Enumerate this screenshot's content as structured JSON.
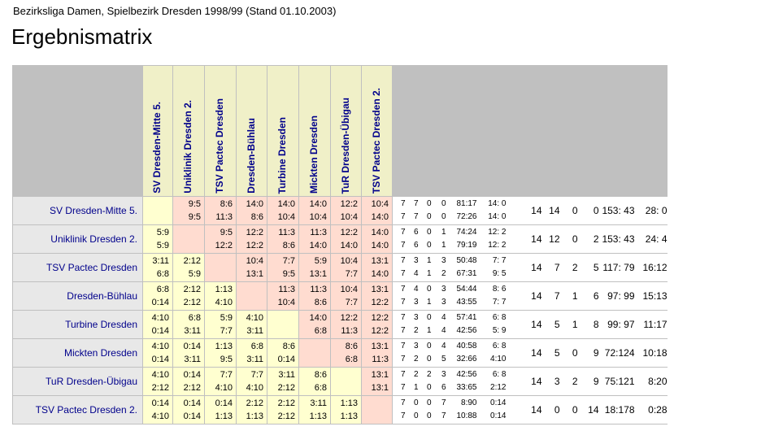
{
  "subtitle": "Bezirksliga Damen, Spielbezirk Dresden 1998/99 (Stand 01.10.2003)",
  "title": "Ergebnismatrix",
  "teams": [
    "SV Dresden-Mitte 5.",
    "Uniklinik Dresden 2.",
    "TSV Pactec Dresden",
    "Dresden-Bühlau",
    "Turbine Dresden",
    "Mickten Dresden",
    "TuR Dresden-Übigau",
    "TSV Pactec Dresden 2."
  ],
  "rows": [
    {
      "name": "SV Dresden-Mitte 5.",
      "cells": [
        [
          "",
          ""
        ],
        [
          "9:5",
          "9:5"
        ],
        [
          "8:6",
          "11:3"
        ],
        [
          "14:0",
          "8:6"
        ],
        [
          "14:0",
          "10:4"
        ],
        [
          "14:0",
          "10:4"
        ],
        [
          "12:2",
          "10:4"
        ],
        [
          "10:4",
          "14:0"
        ]
      ],
      "s1": [
        "7",
        "7",
        "0",
        "0",
        "81:17",
        "14: 0"
      ],
      "s2": [
        "7",
        "7",
        "0",
        "0",
        "72:26",
        "14: 0"
      ],
      "tot": [
        "14",
        "14",
        "0",
        "0",
        "153: 43",
        "28: 0"
      ]
    },
    {
      "name": "Uniklinik Dresden 2.",
      "cells": [
        [
          "5:9",
          "5:9"
        ],
        [
          "",
          ""
        ],
        [
          "9:5",
          "12:2"
        ],
        [
          "12:2",
          "12:2"
        ],
        [
          "11:3",
          "8:6"
        ],
        [
          "11:3",
          "14:0"
        ],
        [
          "12:2",
          "14:0"
        ],
        [
          "14:0",
          "14:0"
        ]
      ],
      "s1": [
        "7",
        "6",
        "0",
        "1",
        "74:24",
        "12: 2"
      ],
      "s2": [
        "7",
        "6",
        "0",
        "1",
        "79:19",
        "12: 2"
      ],
      "tot": [
        "14",
        "12",
        "0",
        "2",
        "153: 43",
        "24: 4"
      ]
    },
    {
      "name": "TSV Pactec Dresden",
      "cells": [
        [
          "3:11",
          "6:8"
        ],
        [
          "2:12",
          "5:9"
        ],
        [
          "",
          ""
        ],
        [
          "10:4",
          "13:1"
        ],
        [
          "7:7",
          "9:5"
        ],
        [
          "5:9",
          "13:1"
        ],
        [
          "10:4",
          "7:7"
        ],
        [
          "13:1",
          "14:0"
        ]
      ],
      "s1": [
        "7",
        "3",
        "1",
        "3",
        "50:48",
        "7: 7"
      ],
      "s2": [
        "7",
        "4",
        "1",
        "2",
        "67:31",
        "9: 5"
      ],
      "tot": [
        "14",
        "7",
        "2",
        "5",
        "117: 79",
        "16:12"
      ]
    },
    {
      "name": "Dresden-Bühlau",
      "cells": [
        [
          "6:8",
          "0:14"
        ],
        [
          "2:12",
          "2:12"
        ],
        [
          "1:13",
          "4:10"
        ],
        [
          "",
          ""
        ],
        [
          "11:3",
          "10:4"
        ],
        [
          "11:3",
          "8:6"
        ],
        [
          "10:4",
          "7:7"
        ],
        [
          "13:1",
          "12:2"
        ]
      ],
      "s1": [
        "7",
        "4",
        "0",
        "3",
        "54:44",
        "8: 6"
      ],
      "s2": [
        "7",
        "3",
        "1",
        "3",
        "43:55",
        "7: 7"
      ],
      "tot": [
        "14",
        "7",
        "1",
        "6",
        "97: 99",
        "15:13"
      ]
    },
    {
      "name": "Turbine Dresden",
      "cells": [
        [
          "4:10",
          "0:14"
        ],
        [
          "6:8",
          "3:11"
        ],
        [
          "5:9",
          "7:7"
        ],
        [
          "4:10",
          "3:11"
        ],
        [
          "",
          ""
        ],
        [
          "14:0",
          "6:8"
        ],
        [
          "12:2",
          "11:3"
        ],
        [
          "12:2",
          "12:2"
        ]
      ],
      "s1": [
        "7",
        "3",
        "0",
        "4",
        "57:41",
        "6: 8"
      ],
      "s2": [
        "7",
        "2",
        "1",
        "4",
        "42:56",
        "5: 9"
      ],
      "tot": [
        "14",
        "5",
        "1",
        "8",
        "99: 97",
        "11:17"
      ]
    },
    {
      "name": "Mickten Dresden",
      "cells": [
        [
          "4:10",
          "0:14"
        ],
        [
          "0:14",
          "3:11"
        ],
        [
          "1:13",
          "9:5"
        ],
        [
          "6:8",
          "3:11"
        ],
        [
          "8:6",
          "0:14"
        ],
        [
          "",
          ""
        ],
        [
          "8:6",
          "6:8"
        ],
        [
          "13:1",
          "11:3"
        ]
      ],
      "s1": [
        "7",
        "3",
        "0",
        "4",
        "40:58",
        "6: 8"
      ],
      "s2": [
        "7",
        "2",
        "0",
        "5",
        "32:66",
        "4:10"
      ],
      "tot": [
        "14",
        "5",
        "0",
        "9",
        "72:124",
        "10:18"
      ]
    },
    {
      "name": "TuR Dresden-Übigau",
      "cells": [
        [
          "4:10",
          "2:12"
        ],
        [
          "0:14",
          "2:12"
        ],
        [
          "7:7",
          "4:10"
        ],
        [
          "7:7",
          "4:10"
        ],
        [
          "3:11",
          "2:12"
        ],
        [
          "8:6",
          "6:8"
        ],
        [
          "",
          ""
        ],
        [
          "13:1",
          "13:1"
        ]
      ],
      "s1": [
        "7",
        "2",
        "2",
        "3",
        "42:56",
        "6: 8"
      ],
      "s2": [
        "7",
        "1",
        "0",
        "6",
        "33:65",
        "2:12"
      ],
      "tot": [
        "14",
        "3",
        "2",
        "9",
        "75:121",
        "8:20"
      ]
    },
    {
      "name": "TSV Pactec Dresden 2.",
      "cells": [
        [
          "0:14",
          "4:10"
        ],
        [
          "0:14",
          "0:14"
        ],
        [
          "0:14",
          "1:13"
        ],
        [
          "2:12",
          "1:13"
        ],
        [
          "2:12",
          "2:12"
        ],
        [
          "3:11",
          "1:13"
        ],
        [
          "1:13",
          "1:13"
        ],
        [
          "",
          ""
        ]
      ],
      "s1": [
        "7",
        "0",
        "0",
        "7",
        "8:90",
        "0:14"
      ],
      "s2": [
        "7",
        "0",
        "0",
        "7",
        "10:88",
        "0:14"
      ],
      "tot": [
        "14",
        "0",
        "0",
        "14",
        "18:178",
        "0:28"
      ]
    }
  ]
}
